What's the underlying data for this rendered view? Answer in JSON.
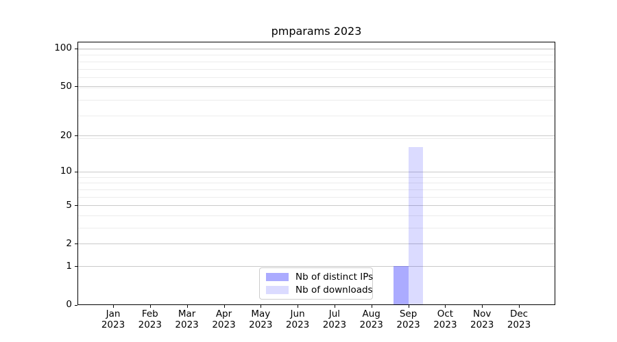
{
  "title": "pmparams 2023",
  "chart_data": {
    "type": "bar",
    "title": "pmparams 2023",
    "categories": [
      "Jan 2023",
      "Feb 2023",
      "Mar 2023",
      "Apr 2023",
      "May 2023",
      "Jun 2023",
      "Jul 2023",
      "Aug 2023",
      "Sep 2023",
      "Oct 2023",
      "Nov 2023",
      "Dec 2023"
    ],
    "series": [
      {
        "name": "Nb of distinct IPs",
        "color": "rgba(0,0,255,0.33)",
        "values": [
          0,
          0,
          0,
          0,
          0,
          0,
          0,
          0,
          1,
          0,
          0,
          0
        ]
      },
      {
        "name": "Nb of downloads",
        "color": "rgba(0,0,255,0.14)",
        "values": [
          0,
          0,
          0,
          0,
          0,
          0,
          0,
          0,
          16,
          0,
          0,
          0
        ]
      }
    ],
    "xlabel": "",
    "ylabel": "",
    "yscale": "log10(value+1)",
    "yticks": [
      0,
      1,
      2,
      5,
      10,
      20,
      50,
      100
    ],
    "ylim": [
      0,
      113
    ],
    "grid": "horizontal major + minor",
    "legend_position": "lower center",
    "grid_major_color": "#c9c9c9",
    "grid_minor_color": "#ececec"
  }
}
